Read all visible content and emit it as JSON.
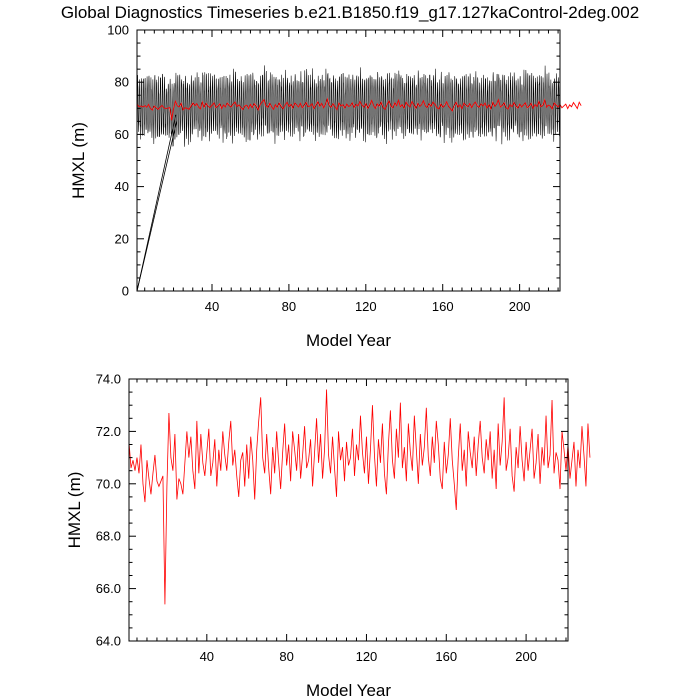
{
  "title": "Global Diagnostics Timeseries b.e21.B1850.f19_g17.127kaControl-2deg.002",
  "colors": {
    "monthly": "#000000",
    "annual": "#ff0000",
    "frame": "#000000"
  },
  "chart_data": [
    {
      "type": "line",
      "name": "top-panel",
      "xlabel": "Model Year",
      "ylabel": "HMXL (m)",
      "xlim": [
        1,
        221
      ],
      "ylim": [
        0,
        100
      ],
      "x_ticks": [
        40,
        80,
        120,
        160,
        200
      ],
      "y_ticks": [
        0,
        20,
        40,
        60,
        80,
        100
      ],
      "y_tick_labels": [
        "0",
        "20",
        "40",
        "60",
        "80",
        "100"
      ],
      "series": [
        {
          "kind": "monthly",
          "color": "#000000",
          "mean": 70.5,
          "amplitude": 10,
          "x_start": 1,
          "x_end": 221,
          "spinup_from": [
            1,
            0
          ],
          "spinup_to_year": 20
        },
        {
          "kind": "annual",
          "color": "#ff0000",
          "mean": 70.8
        }
      ]
    },
    {
      "type": "line",
      "name": "bottom-panel",
      "xlabel": "Model Year",
      "ylabel": "HMXL (m)",
      "xlim": [
        1,
        221
      ],
      "ylim": [
        64,
        74
      ],
      "x_ticks": [
        40,
        80,
        120,
        160,
        200
      ],
      "y_ticks": [
        64,
        66,
        68,
        70,
        72,
        74
      ],
      "y_tick_labels": [
        "64.0",
        "66.0",
        "68.0",
        "70.0",
        "72.0",
        "74.0"
      ],
      "series": [
        {
          "kind": "annual",
          "color": "#ff0000",
          "x_start": 1,
          "values": [
            71.6,
            70.6,
            70.9,
            70.5,
            71.0,
            70.4,
            71.5,
            70.0,
            69.3,
            70.9,
            70.2,
            69.6,
            70.4,
            71.1,
            70.1,
            69.9,
            70.1,
            70.3,
            65.4,
            69.9,
            72.7,
            71.0,
            70.5,
            71.9,
            69.4,
            70.2,
            70.0,
            69.6,
            70.8,
            72.0,
            71.0,
            71.8,
            70.5,
            69.8,
            72.4,
            70.4,
            71.9,
            70.8,
            70.3,
            71.2,
            72.1,
            70.3,
            70.8,
            71.7,
            69.9,
            71.3,
            70.5,
            72.0,
            71.1,
            70.5,
            71.6,
            72.4,
            70.7,
            71.3,
            70.3,
            69.5,
            70.9,
            71.2,
            69.9,
            71.5,
            70.2,
            71.8,
            70.9,
            69.4,
            71.3,
            72.4,
            73.3,
            71.0,
            70.4,
            71.9,
            70.6,
            69.6,
            71.4,
            70.4,
            72.0,
            70.8,
            69.8,
            71.2,
            72.3,
            70.7,
            71.5,
            70.1,
            72.0,
            71.3,
            70.5,
            71.9,
            70.2,
            71.1,
            72.2,
            70.6,
            70.9,
            71.7,
            69.9,
            71.2,
            72.5,
            70.8,
            71.9,
            70.2,
            71.3,
            73.6,
            71.1,
            70.4,
            71.8,
            70.6,
            69.5,
            72.0,
            70.9,
            71.4,
            70.1,
            71.6,
            70.7,
            71.0,
            72.1,
            70.3,
            71.5,
            70.9,
            72.6,
            71.2,
            70.4,
            71.8,
            70.0,
            71.3,
            73.0,
            71.1,
            69.9,
            71.7,
            70.8,
            72.3,
            70.4,
            69.6,
            71.5,
            72.8,
            70.9,
            70.2,
            72.1,
            71.0,
            73.1,
            70.6,
            71.4,
            70.1,
            72.3,
            71.2,
            70.5,
            72.6,
            71.3,
            70.0,
            71.9,
            70.7,
            71.4,
            72.9,
            71.0,
            70.3,
            71.8,
            70.8,
            72.4,
            71.5,
            70.2,
            69.8,
            71.6,
            70.4,
            71.1,
            72.5,
            70.9,
            70.0,
            69.0,
            71.0,
            72.3,
            70.5,
            71.3,
            69.9,
            72.0,
            71.2,
            70.6,
            71.8,
            70.3,
            71.5,
            72.4,
            71.0,
            70.4,
            71.7,
            70.9,
            72.0,
            70.2,
            71.3,
            69.8,
            72.3,
            70.7,
            71.6,
            73.3,
            70.5,
            71.0,
            72.1,
            70.3,
            69.7,
            71.4,
            70.6,
            72.2,
            70.9,
            70.1,
            71.6,
            70.5,
            71.3,
            72.1,
            70.2,
            70.8,
            71.9,
            70.0,
            71.4,
            70.7,
            72.6,
            70.6,
            71.1,
            73.2,
            70.4,
            71.2,
            70.9,
            69.8,
            72.0,
            71.3,
            70.5,
            71.5,
            70.2,
            70.9,
            71.6,
            69.9,
            71.3,
            70.6,
            72.2,
            71.1,
            69.9,
            72.3,
            71.0
          ]
        }
      ]
    }
  ]
}
